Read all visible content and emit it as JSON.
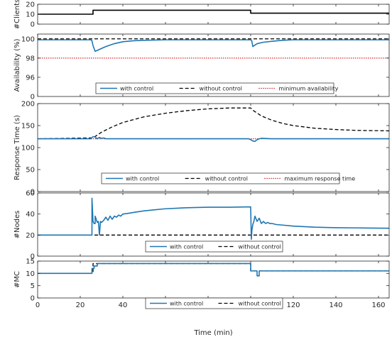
{
  "chart_data": [
    {
      "type": "line",
      "ylabel": "#Clients",
      "ylim": [
        0,
        20
      ],
      "yticks": [
        0,
        10,
        20
      ],
      "xlim": [
        0,
        165
      ],
      "grid": false,
      "series": [
        {
          "name": "",
          "color": "#000000",
          "style": "solid",
          "x": [
            0,
            26,
            26,
            100,
            100,
            165
          ],
          "y": [
            10,
            10,
            14,
            14,
            11,
            11
          ]
        }
      ]
    },
    {
      "type": "line",
      "ylabel": "Availability (%)",
      "ylim": [
        94,
        100.5
      ],
      "yticks": [
        96,
        98,
        100
      ],
      "extra_tick_label": "0",
      "xlim": [
        0,
        165
      ],
      "legend": "bottom-center",
      "series": [
        {
          "name": "with control",
          "color": "#1f77b4",
          "style": "solid",
          "x": [
            0,
            25,
            25.5,
            26,
            27,
            29,
            32,
            36,
            40,
            45,
            50,
            60,
            80,
            100,
            100.5,
            101,
            103,
            106,
            110,
            115,
            120,
            130,
            165
          ],
          "y": [
            99.9,
            99.9,
            99.8,
            99.3,
            98.7,
            98.9,
            99.2,
            99.5,
            99.7,
            99.8,
            99.85,
            99.9,
            99.9,
            99.9,
            99.8,
            99.2,
            99.5,
            99.65,
            99.75,
            99.85,
            99.9,
            99.9,
            99.9
          ]
        },
        {
          "name": "without control",
          "color": "#000000",
          "style": "dashed",
          "x": [
            0,
            165
          ],
          "y": [
            100,
            100
          ]
        },
        {
          "name": "minimum availability",
          "color": "#d62728",
          "style": "dotted",
          "x": [
            0,
            165
          ],
          "y": [
            98,
            98
          ]
        }
      ]
    },
    {
      "type": "line",
      "ylabel": "Response Time (s)",
      "ylim": [
        0,
        200
      ],
      "yticks": [
        0,
        50,
        100,
        150,
        200
      ],
      "xlim": [
        0,
        165
      ],
      "legend": "bottom-center",
      "series": [
        {
          "name": "with control",
          "color": "#1f77b4",
          "style": "solid",
          "x": [
            0,
            25,
            26,
            27,
            28,
            29,
            30,
            31,
            32,
            35,
            40,
            60,
            80,
            99,
            100,
            101,
            102,
            103,
            104,
            105,
            110,
            120,
            140,
            165
          ],
          "y": [
            120,
            120,
            125,
            124,
            120,
            123,
            121,
            122,
            120,
            120,
            120,
            120,
            120,
            120,
            118,
            115,
            114,
            118,
            120,
            121,
            120,
            120,
            120,
            120
          ]
        },
        {
          "name": "without control",
          "color": "#000000",
          "style": "dashed",
          "x": [
            0,
            26,
            30,
            35,
            40,
            50,
            60,
            70,
            80,
            90,
            100,
            101,
            105,
            110,
            115,
            120,
            130,
            140,
            150,
            165
          ],
          "y": [
            120,
            122,
            135,
            147,
            157,
            170,
            178,
            184,
            188,
            190,
            190,
            185,
            172,
            162,
            155,
            150,
            144,
            141,
            139,
            138
          ]
        },
        {
          "name": "maximum response time",
          "color": "#d62728",
          "style": "dotted",
          "x": [
            0,
            165
          ],
          "y": [
            120,
            120
          ]
        }
      ]
    },
    {
      "type": "line",
      "ylabel": "#Nodes",
      "ylim": [
        0,
        60
      ],
      "yticks": [
        0,
        20,
        40,
        60
      ],
      "xlim": [
        0,
        165
      ],
      "legend": "bottom-center",
      "series": [
        {
          "name": "with control",
          "color": "#1f77b4",
          "style": "solid",
          "x": [
            0,
            25.5,
            25.5,
            26,
            26.5,
            27,
            27,
            28,
            28.5,
            29,
            29.5,
            30,
            31,
            32,
            33,
            34,
            35,
            36,
            37,
            38,
            39,
            40,
            42,
            45,
            50,
            55,
            60,
            70,
            80,
            90,
            100,
            100.3,
            100.6,
            101,
            101.5,
            102,
            103,
            104,
            105,
            106,
            107,
            108,
            109,
            110,
            112,
            115,
            120,
            125,
            130,
            140,
            150,
            160,
            165
          ],
          "y": [
            20,
            20,
            55,
            33,
            31,
            31,
            38,
            32,
            33,
            20,
            33,
            32,
            34,
            37,
            34,
            38,
            35,
            38,
            37,
            39,
            38,
            40,
            40.5,
            41.5,
            43,
            44,
            45,
            46,
            46.5,
            46.5,
            46.8,
            16,
            25,
            30,
            33,
            38,
            33,
            36,
            31,
            33,
            31,
            32,
            31,
            31,
            30,
            29.5,
            28.5,
            28,
            27.5,
            27,
            26.8,
            26.6,
            26.5
          ]
        },
        {
          "name": "without control",
          "color": "#000000",
          "style": "dashed",
          "x": [
            0,
            165
          ],
          "y": [
            20,
            20
          ]
        }
      ]
    },
    {
      "type": "line",
      "ylabel": "#MC",
      "ylim": [
        0,
        15
      ],
      "yticks": [
        0,
        5,
        10,
        15
      ],
      "xlim": [
        0,
        165
      ],
      "xticks": [
        0,
        20,
        40,
        60,
        80,
        100,
        120,
        140,
        160
      ],
      "xlabel": "Time (min)",
      "legend": "bottom-center",
      "series": [
        {
          "name": "with control",
          "color": "#1f77b4",
          "style": "solid",
          "x": [
            0,
            25.5,
            25.5,
            26.5,
            26.5,
            28,
            28,
            100,
            100,
            103,
            103,
            104,
            104,
            165
          ],
          "y": [
            10,
            10,
            12,
            12,
            13,
            13,
            14,
            14,
            11,
            11,
            9,
            9,
            11,
            11
          ]
        },
        {
          "name": "without control",
          "color": "#000000",
          "style": "dashed",
          "x": [
            0,
            26,
            26,
            100,
            100,
            165
          ],
          "y": [
            10,
            10,
            14,
            14,
            11,
            11
          ]
        }
      ]
    }
  ]
}
